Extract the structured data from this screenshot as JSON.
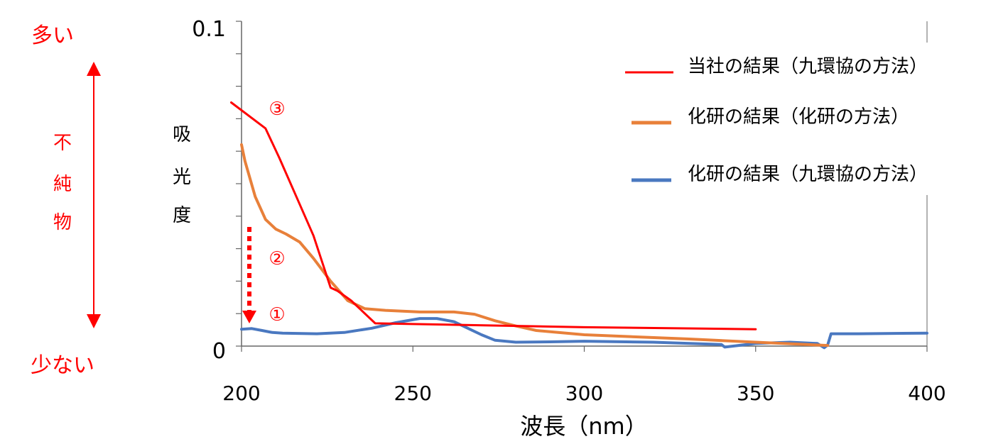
{
  "side_labels": {
    "top": "多い",
    "bottom": "少ない",
    "middle": [
      "不",
      "純",
      "物"
    ]
  },
  "colors": {
    "red": "#ff0000",
    "orange": "#e8803a",
    "blue": "#4a78c0",
    "axis": "#666666",
    "text": "#000000"
  },
  "markers": {
    "m1": "①",
    "m2": "②",
    "m3": "③"
  },
  "chart_data": {
    "type": "line",
    "xlabel": "波長（nm）",
    "ylabel": "吸光度",
    "xlim": [
      200,
      400
    ],
    "ylim": [
      0,
      0.1
    ],
    "x_ticks": [
      "200",
      "250",
      "300",
      "350",
      "400"
    ],
    "y_tick_labels": [
      "0",
      "0.1"
    ],
    "y_minor_ticks": [
      0,
      0.01,
      0.02,
      0.03,
      0.04,
      0.05,
      0.06,
      0.07,
      0.08,
      0.09,
      0.1
    ],
    "legend_position": "top-right",
    "series": [
      {
        "name": "当社の結果（九環協の方法）",
        "color": "#ff0000",
        "x": [
          197,
          207,
          211,
          216,
          221,
          226,
          228,
          232,
          239,
          250,
          300,
          350
        ],
        "y": [
          0.075,
          0.067,
          0.058,
          0.046,
          0.034,
          0.018,
          0.017,
          0.014,
          0.007,
          0.0068,
          0.0058,
          0.0052
        ],
        "marker_label": "③"
      },
      {
        "name": "化研の結果（化研の方法）",
        "color": "#e8803a",
        "x": [
          200,
          201,
          204,
          207,
          210,
          213,
          217,
          221,
          226,
          231,
          236,
          242,
          252,
          262,
          268,
          274,
          280,
          286,
          300,
          330,
          350,
          371
        ],
        "y": [
          0.062,
          0.057,
          0.046,
          0.039,
          0.036,
          0.0345,
          0.032,
          0.027,
          0.02,
          0.014,
          0.0115,
          0.011,
          0.0105,
          0.0105,
          0.0098,
          0.0078,
          0.0062,
          0.0048,
          0.0035,
          0.0022,
          0.0012,
          0.0002
        ],
        "marker_label": "②"
      },
      {
        "name": "化研の結果（九環協の方法）",
        "color": "#4a78c0",
        "x": [
          200,
          203,
          206,
          209,
          212,
          222,
          230,
          238,
          245,
          252,
          257,
          262,
          266,
          270,
          274,
          280,
          290,
          300,
          320,
          340,
          341,
          345,
          350,
          360,
          368,
          370,
          371,
          372,
          380,
          400
        ],
        "y": [
          0.0052,
          0.0054,
          0.0048,
          0.0042,
          0.004,
          0.0038,
          0.0042,
          0.0055,
          0.0072,
          0.0085,
          0.0085,
          0.0075,
          0.0055,
          0.0035,
          0.0018,
          0.0012,
          0.0013,
          0.0015,
          0.0012,
          0.0005,
          -0.0003,
          0.0002,
          0.0008,
          0.0012,
          0.0008,
          -0.0005,
          0.0003,
          0.0038,
          0.0038,
          0.004
        ],
        "marker_label": "①"
      }
    ]
  }
}
